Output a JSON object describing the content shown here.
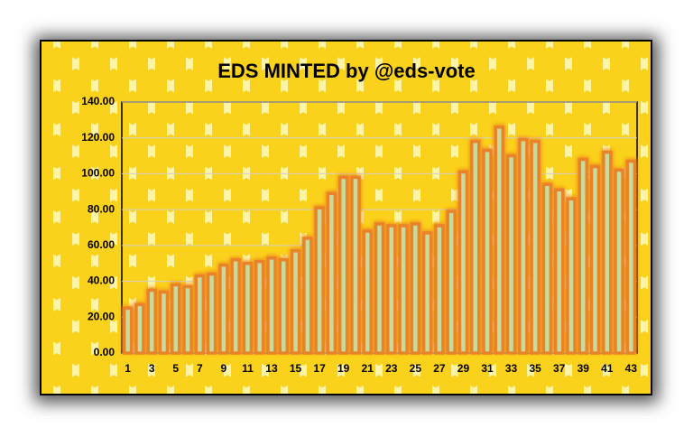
{
  "chart_data": {
    "type": "bar",
    "title": "EDS MINTED by @eds-vote",
    "categories": [
      1,
      null,
      3,
      null,
      5,
      null,
      7,
      null,
      9,
      null,
      11,
      null,
      13,
      null,
      15,
      null,
      17,
      null,
      19,
      null,
      21,
      null,
      23,
      null,
      25,
      null,
      27,
      null,
      29,
      null,
      31,
      null,
      33,
      null,
      35,
      null,
      37,
      null,
      39,
      null,
      41,
      null,
      43
    ],
    "values": [
      25,
      27,
      35,
      34,
      38,
      37,
      43,
      44,
      49,
      52,
      50,
      51,
      53,
      52,
      57,
      64,
      81,
      89,
      98,
      98,
      68,
      72,
      71,
      71,
      72,
      67,
      71,
      79,
      101,
      118,
      113,
      126,
      110,
      119,
      118,
      94,
      91,
      86,
      108,
      104,
      112,
      102,
      107
    ],
    "color": "#c7dc9c",
    "ylim": [
      0,
      140
    ],
    "yticks": [
      {
        "value": 0,
        "label": "0.00"
      },
      {
        "value": 20,
        "label": "20.00"
      },
      {
        "value": 40,
        "label": "40.00"
      },
      {
        "value": 60,
        "label": "60.00"
      },
      {
        "value": 80,
        "label": "80.00"
      },
      {
        "value": 100,
        "label": "100.00"
      },
      {
        "value": 120,
        "label": "120.00"
      },
      {
        "value": 140,
        "label": "140.00"
      }
    ],
    "grid": true
  }
}
